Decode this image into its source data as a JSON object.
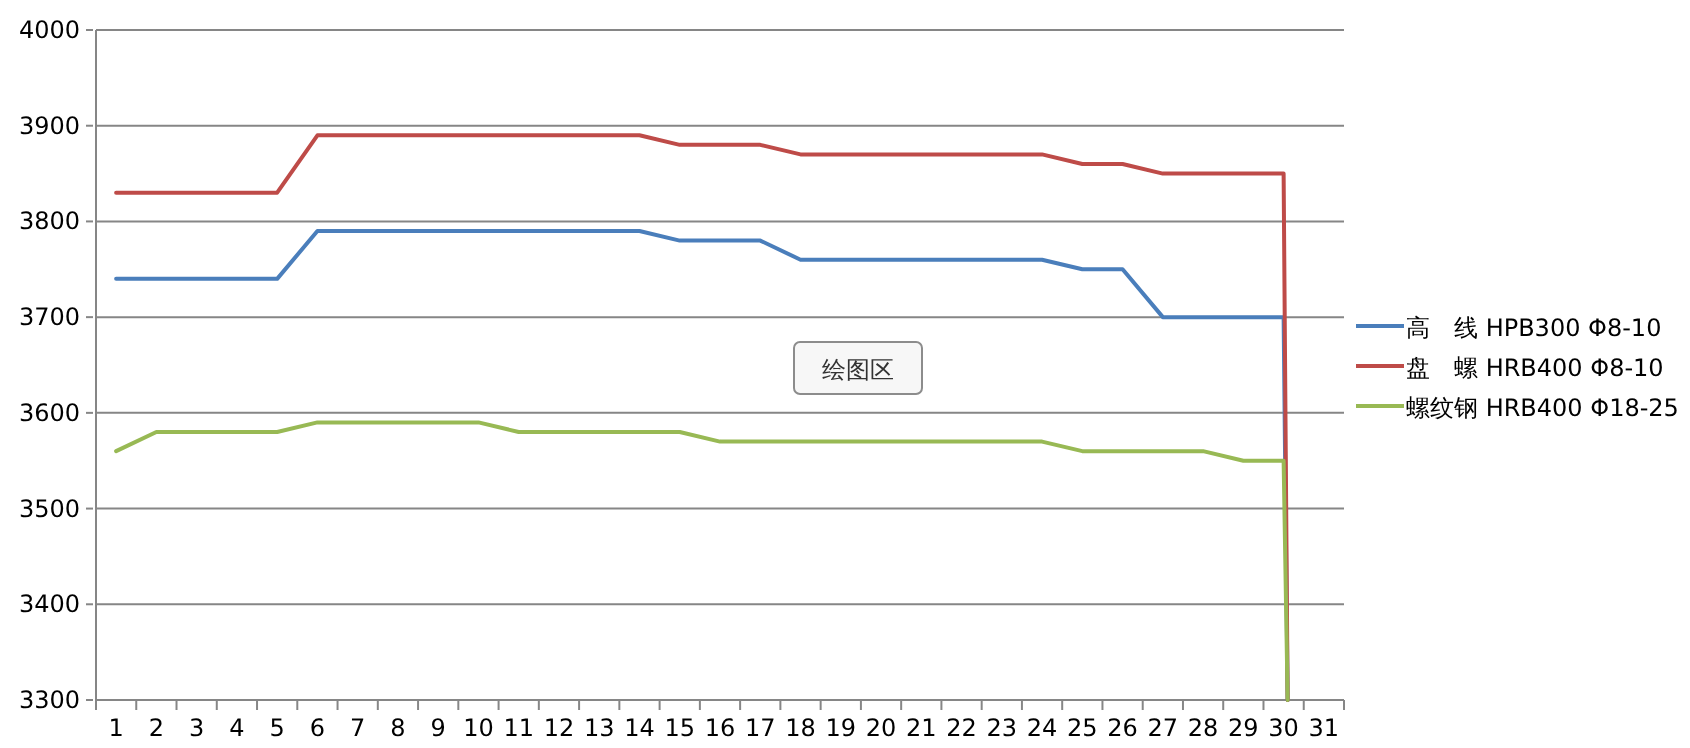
{
  "chart_data": {
    "type": "line",
    "x": [
      1,
      2,
      3,
      4,
      5,
      6,
      7,
      8,
      9,
      10,
      11,
      12,
      13,
      14,
      15,
      16,
      17,
      18,
      19,
      20,
      21,
      22,
      23,
      24,
      25,
      26,
      27,
      28,
      29,
      30,
      30.1
    ],
    "series": [
      {
        "name": "高　线 HPB300 Φ8-10",
        "color": "#4a7ebb",
        "values": [
          3740,
          3740,
          3740,
          3740,
          3740,
          3790,
          3790,
          3790,
          3790,
          3790,
          3790,
          3790,
          3790,
          3790,
          3780,
          3780,
          3780,
          3760,
          3760,
          3760,
          3760,
          3760,
          3760,
          3760,
          3750,
          3750,
          3700,
          3700,
          3700,
          3700,
          3300
        ]
      },
      {
        "name": "盘　螺 HRB400 Φ8-10",
        "color": "#be4b48",
        "values": [
          3830,
          3830,
          3830,
          3830,
          3830,
          3890,
          3890,
          3890,
          3890,
          3890,
          3890,
          3890,
          3890,
          3890,
          3880,
          3880,
          3880,
          3870,
          3870,
          3870,
          3870,
          3870,
          3870,
          3870,
          3860,
          3860,
          3850,
          3850,
          3850,
          3850,
          3300
        ]
      },
      {
        "name": "螺纹钢 HRB400 Φ18-25",
        "color": "#98b954",
        "values": [
          3560,
          3580,
          3580,
          3580,
          3580,
          3590,
          3590,
          3590,
          3590,
          3590,
          3580,
          3580,
          3580,
          3580,
          3580,
          3570,
          3570,
          3570,
          3570,
          3570,
          3570,
          3570,
          3570,
          3570,
          3560,
          3560,
          3560,
          3560,
          3550,
          3550,
          3300
        ]
      }
    ],
    "xlim": [
      0.5,
      31.5
    ],
    "xticks": [
      1,
      2,
      3,
      4,
      5,
      6,
      7,
      8,
      9,
      10,
      11,
      12,
      13,
      14,
      15,
      16,
      17,
      18,
      19,
      20,
      21,
      22,
      23,
      24,
      25,
      26,
      27,
      28,
      29,
      30,
      31
    ],
    "ylim": [
      3300,
      4000
    ],
    "yticks": [
      3300,
      3400,
      3500,
      3600,
      3700,
      3800,
      3900,
      4000
    ],
    "grid": "y",
    "legend": "right",
    "line_style": "solid",
    "annotations": [
      "绘图区"
    ]
  }
}
